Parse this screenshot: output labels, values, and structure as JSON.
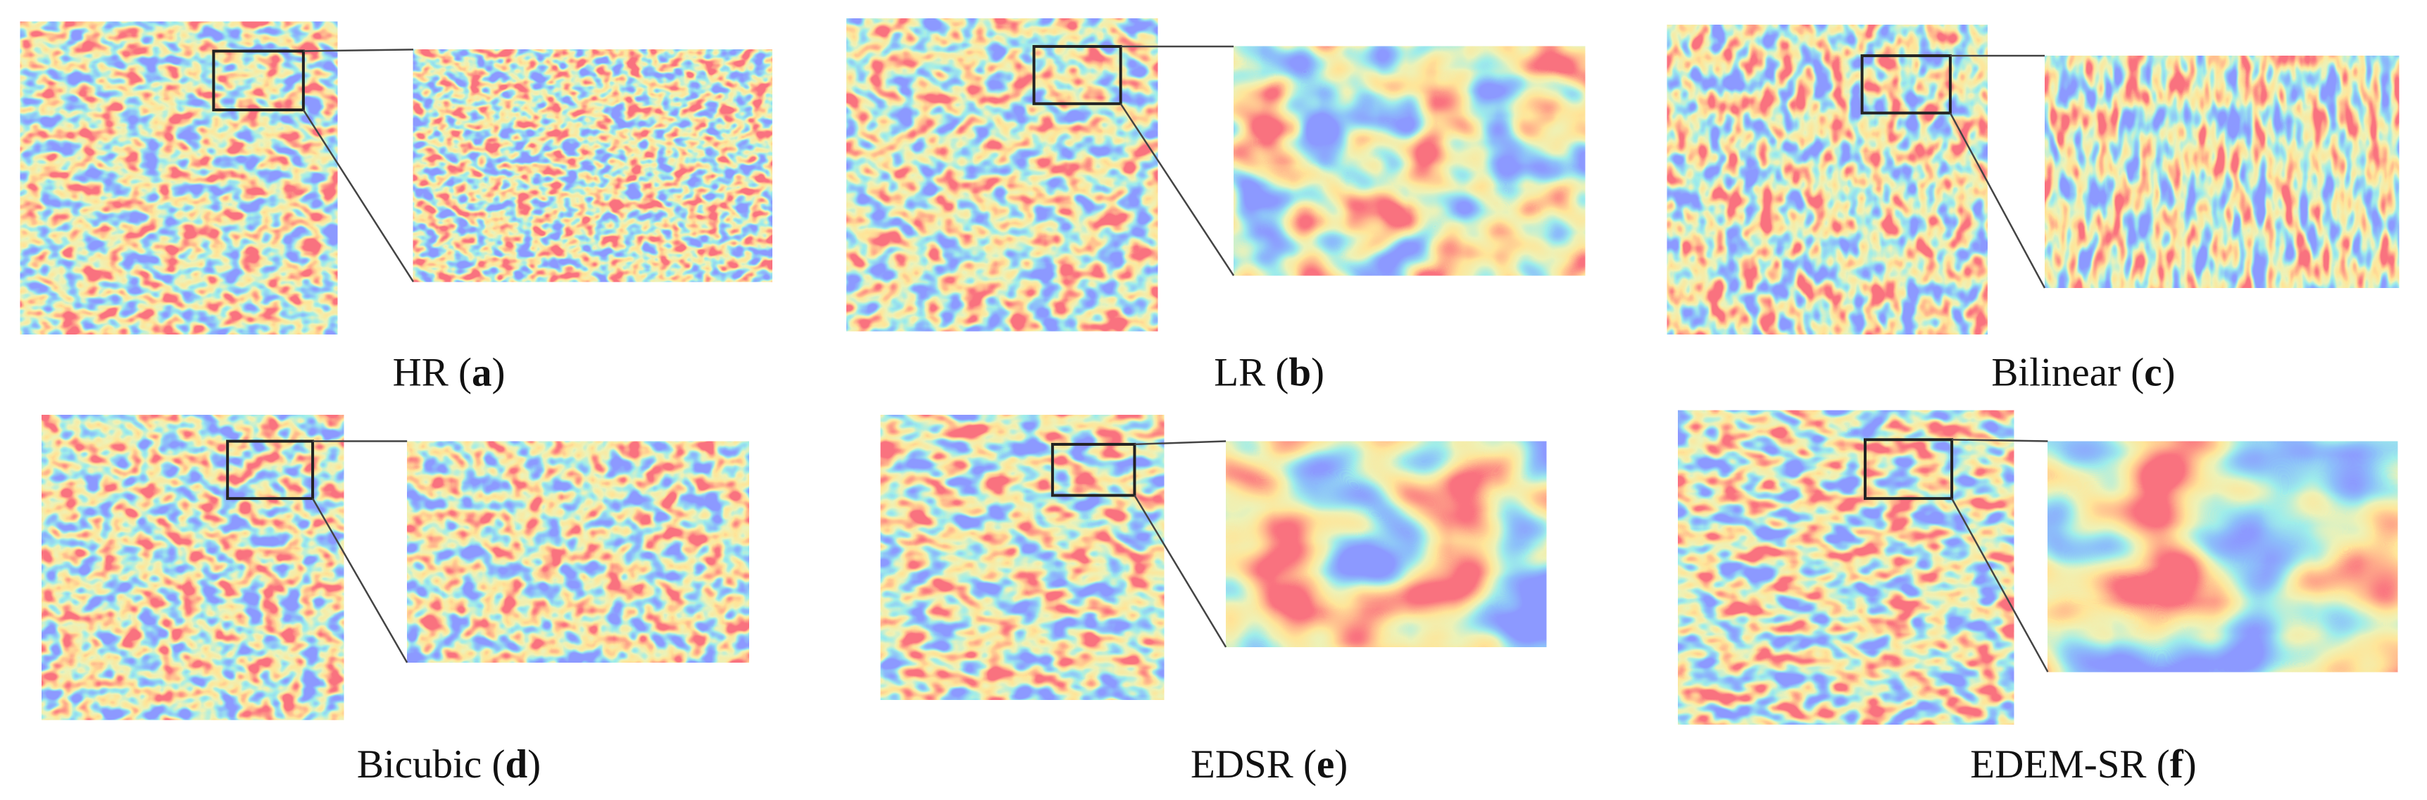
{
  "panels": [
    {
      "label": [
        "HR (",
        "a",
        ")"
      ]
    },
    {
      "label": [
        "LR (",
        "b",
        ")"
      ]
    },
    {
      "label": [
        "Bilinear (",
        "c",
        ")"
      ]
    },
    {
      "label": [
        "Bicubic (",
        "d",
        ")"
      ]
    },
    {
      "label": [
        "EDSR (",
        "e",
        ")"
      ]
    },
    {
      "label": [
        "EDEM-SR (",
        "f",
        ")"
      ]
    }
  ]
}
